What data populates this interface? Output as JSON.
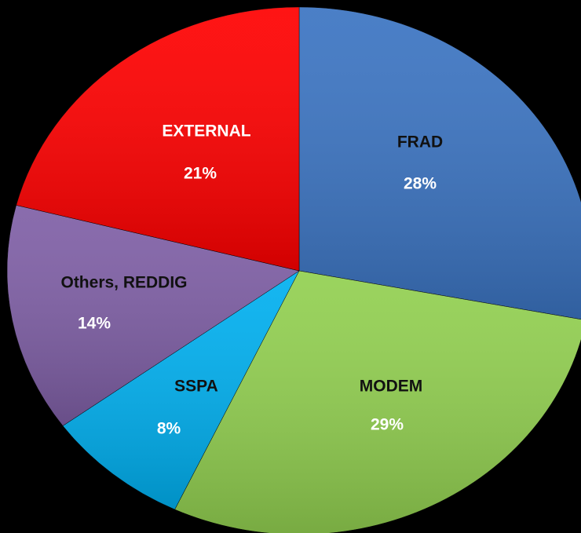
{
  "chart_data": {
    "type": "pie",
    "categories": [
      "FRAD",
      "MODEM",
      "SSPA",
      "Others, REDDIG",
      "EXTERNAL"
    ],
    "values": [
      28,
      29,
      8,
      14,
      21
    ],
    "value_labels": [
      "28%",
      "29%",
      "8%",
      "14%",
      "21%"
    ],
    "colors": [
      "#3b74c2",
      "#92d050",
      "#00b0f0",
      "#7f5fa6",
      "#ff0000"
    ]
  }
}
